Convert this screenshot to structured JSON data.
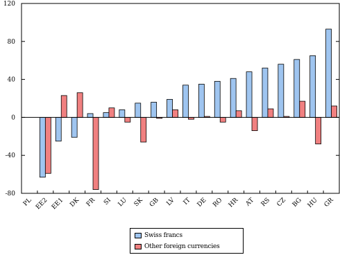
{
  "chart_data": {
    "type": "bar",
    "categories": [
      "PL",
      "EE2",
      "EE1",
      "DK",
      "FR",
      "SI",
      "LU",
      "SK",
      "GB",
      "LV",
      "IT",
      "DE",
      "RO",
      "HR",
      "AT",
      "RS",
      "CZ",
      "BG",
      "HU",
      "GR"
    ],
    "series": [
      {
        "name": "Swiss francs",
        "color": "#9fc5f0",
        "values": [
          0,
          -63,
          -25,
          -21,
          4,
          5,
          8,
          15,
          16,
          19,
          34,
          35,
          38,
          41,
          48,
          52,
          56,
          61,
          65,
          93
        ]
      },
      {
        "name": "Other foreign currencies",
        "color": "#f08080",
        "values": [
          0,
          -59,
          23,
          26,
          -76,
          10,
          -5,
          -26,
          -1,
          8,
          -2,
          1,
          -5,
          7,
          -14,
          9,
          1,
          17,
          -28,
          12
        ]
      }
    ],
    "yticks": [
      -80,
      -40,
      0,
      40,
      80,
      120
    ],
    "ylim": [
      -80,
      120
    ],
    "grid": false,
    "legend_position": "bottom-center",
    "title": "",
    "xlabel": "",
    "ylabel": ""
  }
}
